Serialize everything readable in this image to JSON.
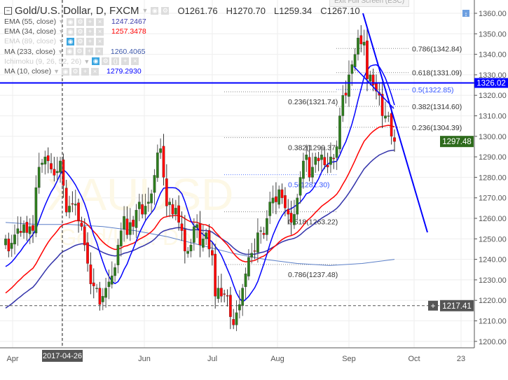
{
  "header": {
    "symbol_title": "Gold/U.S. Dollar, D, FXCM",
    "ohlc": {
      "open": "O1261.76",
      "high": "H1270.70",
      "low": "L1259.34",
      "close": "C1267.10"
    },
    "exit_fullscreen": "Exit Full Screen (ESC)"
  },
  "indicators": [
    {
      "label": "EMA (55, close)",
      "value": "1247.2467",
      "color": "#3d3daa",
      "visible": true
    },
    {
      "label": "EMA (34, close)",
      "value": "1257.3478",
      "color": "#ff0000",
      "visible": true
    },
    {
      "label": "EMA (89, close)",
      "value": "",
      "color": "#cccccc",
      "visible": false
    },
    {
      "label": "MA (233, close)",
      "value": "1260.4065",
      "color": "#3d58aa",
      "visible": true
    },
    {
      "label": "Ichimoku (9, 26, 52, 26)",
      "value": "",
      "color": "#cccccc",
      "visible": false
    },
    {
      "label": "MA (10, close)",
      "value": "1279.2930",
      "color": "#0000ff",
      "visible": true
    }
  ],
  "watermark": {
    "symbol": "XAUUSD",
    "name": "Gold/U.S. Dollar"
  },
  "colors": {
    "up": "#2e7d1e",
    "down": "#ff0000",
    "ma10": "#0000ff",
    "ema34": "#ff0000",
    "ema55": "#3333aa",
    "ma233": "#5b7fc7",
    "hline": "#0000ff",
    "last_price_bg": "#2e6b1c",
    "crosshair_bg": "#555555"
  },
  "chart_data": {
    "type": "candlestick",
    "ylim": [
      1195,
      1364
    ],
    "y_ticks": [
      "1360.00",
      "1350.00",
      "1340.00",
      "1330.00",
      "1320.00",
      "1310.00",
      "1300.00",
      "1290.00",
      "1280.00",
      "1270.00",
      "1260.00",
      "1250.00",
      "1240.00",
      "1230.00",
      "1220.00",
      "1210.00",
      "1200.00"
    ],
    "x_ticks": [
      "Apr",
      "Jun",
      "Jul",
      "Aug",
      "Sep",
      "Oct",
      "23"
    ],
    "crosshair": {
      "date_label": "2017-04-26",
      "price_label": "1217.41"
    },
    "horizontal_line": {
      "price": 1326.02,
      "label": "1326.02"
    },
    "last_price": {
      "price": 1297.48,
      "label": "1297.48"
    },
    "closes": [
      1250,
      1244,
      1248,
      1252,
      1255,
      1253,
      1257,
      1253,
      1256,
      1254,
      1275,
      1285,
      1287,
      1290,
      1288,
      1284,
      1281,
      1283,
      1288,
      1276,
      1263,
      1266,
      1267,
      1267,
      1259,
      1256,
      1247,
      1238,
      1228,
      1227,
      1226,
      1218,
      1222,
      1226,
      1229,
      1232,
      1236,
      1247,
      1254,
      1261,
      1252,
      1258,
      1256,
      1264,
      1268,
      1262,
      1266,
      1268,
      1272,
      1281,
      1292,
      1294,
      1280,
      1266,
      1268,
      1262,
      1265,
      1258,
      1254,
      1244,
      1244,
      1247,
      1256,
      1257,
      1247,
      1250,
      1253,
      1245,
      1242,
      1222,
      1226,
      1222,
      1223,
      1222,
      1212,
      1208,
      1214,
      1218,
      1226,
      1233,
      1241,
      1243,
      1244,
      1253,
      1254,
      1252,
      1260,
      1268,
      1270,
      1268,
      1274,
      1270,
      1265,
      1262,
      1258,
      1262,
      1270,
      1280,
      1288,
      1291,
      1280,
      1285,
      1290,
      1288,
      1291,
      1286,
      1285,
      1290,
      1289,
      1295,
      1310,
      1320,
      1320,
      1330,
      1335,
      1340,
      1348,
      1345,
      1346,
      1328,
      1330,
      1325,
      1322,
      1320,
      1310,
      1310,
      1310,
      1300,
      1297.48
    ],
    "ma233_values": [
      1258,
      1257,
      1257,
      1256,
      1254,
      1251,
      1247,
      1243,
      1240,
      1238,
      1237,
      1238,
      1240
    ],
    "fib_right": [
      {
        "label": "0.786(1342.84)",
        "price": 1342.84,
        "color": "#333333"
      },
      {
        "label": "0.618(1331.09)",
        "price": 1331.09,
        "color": "#333333"
      },
      {
        "label": "0.5(1322.85)",
        "price": 1322.85,
        "color": "#3355ff"
      },
      {
        "label": "0.382(1314.60)",
        "price": 1314.6,
        "color": "#333333"
      },
      {
        "label": "0.236(1304.39)",
        "price": 1304.39,
        "color": "#333333"
      }
    ],
    "fib_left": [
      {
        "label": "0.236(1321.74)",
        "price": 1321.74,
        "color": "#333333"
      },
      {
        "label": "0.382(1299.37)",
        "price": 1299.37,
        "color": "#333333"
      },
      {
        "label": "0.5(1281.30)",
        "price": 1281.3,
        "color": "#3355ff"
      },
      {
        "label": "0.618(1263.22)",
        "price": 1263.22,
        "color": "#333333"
      },
      {
        "label": "0.786(1237.48)",
        "price": 1237.48,
        "color": "#333333"
      }
    ]
  }
}
